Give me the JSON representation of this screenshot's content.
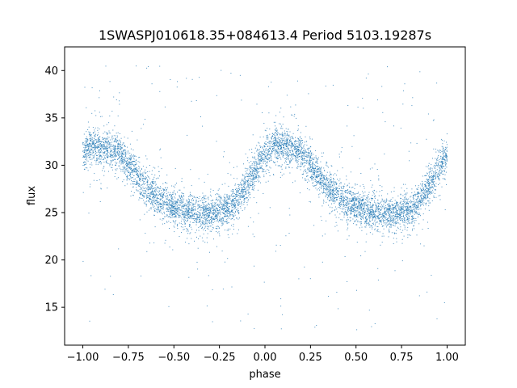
{
  "chart_data": {
    "type": "scatter",
    "title": "1SWASPJ010618.35+084613.4 Period 5103.19287s",
    "xlabel": "phase",
    "ylabel": "flux",
    "xlim": [
      -1.1,
      1.1
    ],
    "ylim": [
      11.0,
      42.5
    ],
    "xticks": [
      -1.0,
      -0.75,
      -0.5,
      -0.25,
      0.0,
      0.25,
      0.5,
      0.75,
      1.0
    ],
    "xtick_labels": [
      "−1.00",
      "−0.75",
      "−0.50",
      "−0.25",
      "0.00",
      "0.25",
      "0.50",
      "0.75",
      "1.00"
    ],
    "yticks": [
      15,
      20,
      25,
      30,
      35,
      40
    ],
    "ytick_labels": [
      "15",
      "20",
      "25",
      "30",
      "35",
      "40"
    ],
    "grid": false,
    "legend": "none",
    "series": [
      {
        "color": "#1f77b4",
        "marker_size": 1,
        "profile_phase": [
          0.0,
          0.05,
          0.1,
          0.15,
          0.2,
          0.25,
          0.3,
          0.35,
          0.4,
          0.45,
          0.5,
          0.55,
          0.6,
          0.65,
          0.7,
          0.75,
          0.8,
          0.85,
          0.9,
          0.95,
          1.0
        ],
        "profile_flux": [
          31.0,
          32.2,
          32.0,
          31.7,
          31.3,
          30.2,
          28.8,
          27.6,
          26.8,
          26.1,
          25.6,
          25.3,
          25.0,
          24.9,
          24.9,
          25.1,
          25.5,
          26.4,
          27.8,
          29.6,
          31.0
        ],
        "scatter_sigma": 0.9,
        "phase_range": [
          -1.0,
          1.0
        ],
        "outlier_flux_range": [
          12.5,
          41.0
        ]
      }
    ]
  }
}
